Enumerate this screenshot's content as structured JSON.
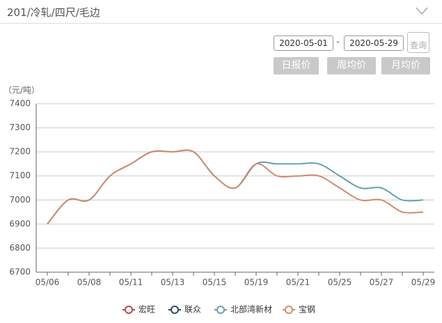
{
  "header": {
    "title": "201/冷轧/四尺/毛边"
  },
  "filter": {
    "start_date": "2020-05-01",
    "separator": "-",
    "end_date": "2020-05-29",
    "query": "查询"
  },
  "buttons": [
    "日报价",
    "周均价",
    "月均价"
  ],
  "chart_data": {
    "type": "line",
    "y_label": "（元/吨）",
    "categories": [
      "05/06",
      null,
      "05/08",
      null,
      "05/11",
      null,
      "05/13",
      null,
      "05/15",
      null,
      "05/19",
      null,
      "05/21",
      null,
      "05/25",
      null,
      "05/27",
      null,
      "05/29"
    ],
    "series": [
      {
        "name": "宏旺",
        "color": "#b5494a",
        "values": [
          null,
          null,
          null,
          null,
          null,
          null,
          null,
          null,
          null,
          null,
          null,
          null,
          null,
          null,
          null,
          null,
          null,
          null,
          null
        ]
      },
      {
        "name": "联众",
        "color": "#2f4a6a",
        "values": [
          null,
          null,
          null,
          null,
          null,
          null,
          null,
          null,
          null,
          null,
          null,
          null,
          null,
          null,
          null,
          null,
          null,
          null,
          null
        ]
      },
      {
        "name": "北部湾新材",
        "color": "#6a9fae",
        "values": [
          6900,
          7000,
          7000,
          7100,
          7150,
          7200,
          7200,
          7200,
          7100,
          7050,
          7150,
          7150,
          7150,
          7150,
          7100,
          7050,
          7050,
          7000,
          7000
        ]
      },
      {
        "name": "宝钢",
        "color": "#d38a6b",
        "values": [
          6900,
          7000,
          7000,
          7100,
          7150,
          7200,
          7200,
          7200,
          7100,
          7050,
          7150,
          7100,
          7100,
          7100,
          7050,
          7000,
          7000,
          6950,
          6950
        ]
      }
    ],
    "ylim": [
      6700,
      7400
    ],
    "yticks": [
      6700,
      6800,
      6900,
      7000,
      7100,
      7200,
      7300,
      7400
    ],
    "grid": true
  }
}
